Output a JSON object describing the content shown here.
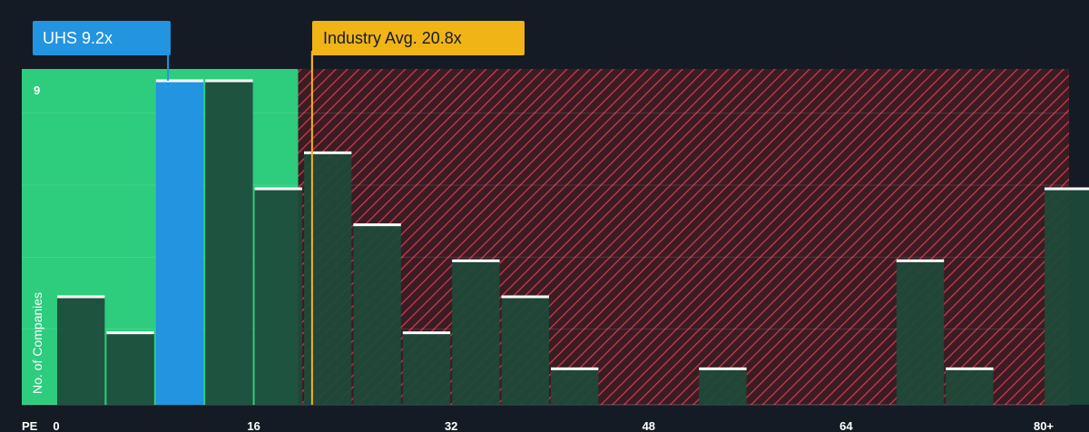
{
  "chart_data": {
    "type": "bar",
    "x_axis_label": "PE",
    "y_axis_label": "No. of Companies",
    "x_ticks": [
      {
        "value": 0,
        "label": "0"
      },
      {
        "value": 16,
        "label": "16"
      },
      {
        "value": 32,
        "label": "32"
      },
      {
        "value": 48,
        "label": "48"
      },
      {
        "value": 64,
        "label": "64"
      },
      {
        "value": 80,
        "label": "80+"
      }
    ],
    "y_ticks": [
      {
        "value": 9,
        "label": "9"
      }
    ],
    "xlim": [
      0,
      82
    ],
    "ylim": [
      0,
      9.3
    ],
    "bin_width": 4,
    "bins": [
      {
        "x0": 0,
        "count": 3
      },
      {
        "x0": 4,
        "count": 2
      },
      {
        "x0": 8,
        "count": 9,
        "highlight": true
      },
      {
        "x0": 12,
        "count": 9
      },
      {
        "x0": 16,
        "count": 6
      },
      {
        "x0": 20,
        "count": 7
      },
      {
        "x0": 24,
        "count": 5
      },
      {
        "x0": 28,
        "count": 2
      },
      {
        "x0": 32,
        "count": 4
      },
      {
        "x0": 36,
        "count": 3
      },
      {
        "x0": 40,
        "count": 1
      },
      {
        "x0": 52,
        "count": 1
      },
      {
        "x0": 68,
        "count": 4
      },
      {
        "x0": 72,
        "count": 1
      },
      {
        "x0": 80,
        "count": 6
      }
    ],
    "company": {
      "label": "UHS 9.2x",
      "value": 9.2
    },
    "industry_avg": {
      "label": "Industry Avg. 20.8x",
      "value": 20.8
    },
    "colors": {
      "background": "#151b24",
      "fair_zone": "#2ecc7d",
      "over_zone": "#3a1c24",
      "hatch": "#d83c4a",
      "bar": "#1d4a3a",
      "bar_highlight": "#2394e0",
      "bar_top": "#ffffff",
      "company_callout": "#2394e0",
      "industry_callout": "#f0b416"
    }
  }
}
